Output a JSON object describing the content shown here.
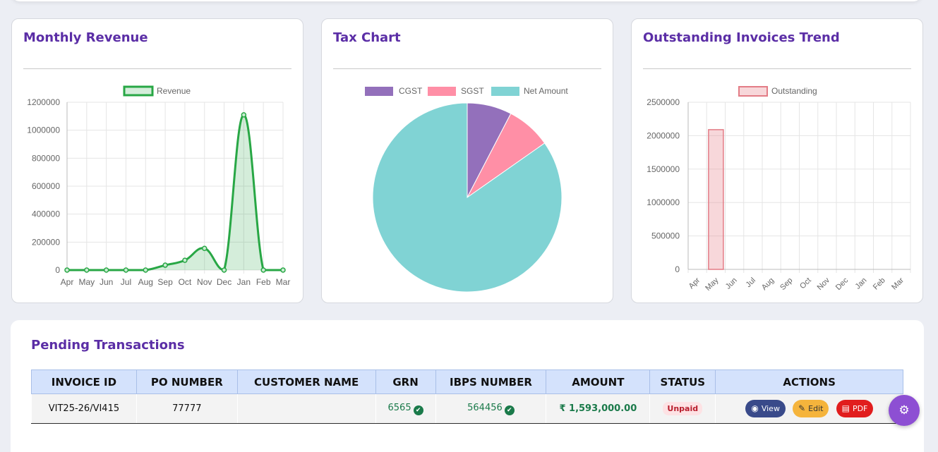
{
  "revenue_card": {
    "title": "Monthly Revenue"
  },
  "tax_card": {
    "title": "Tax Chart"
  },
  "outstanding_card": {
    "title": "Outstanding Invoices Trend"
  },
  "colors": {
    "accent": "#5b2ea6",
    "revenue": "#28a745",
    "cgst": "#9370bb",
    "sgst": "#ff8fa6",
    "net": "#80d3d4",
    "outstanding": "#e37c86",
    "fab": "#8d4fd3"
  },
  "chart_data": [
    {
      "type": "area",
      "title": "Monthly Revenue",
      "categories": [
        "Apr",
        "May",
        "Jun",
        "Jul",
        "Aug",
        "Sep",
        "Oct",
        "Nov",
        "Dec",
        "Jan",
        "Feb",
        "Mar"
      ],
      "series": [
        {
          "name": "Revenue",
          "values": [
            0,
            0,
            0,
            0,
            0,
            35000,
            70000,
            155000,
            0,
            1110000,
            0,
            0
          ]
        }
      ],
      "ylim": [
        0,
        1200000
      ],
      "yticks": [
        0,
        200000,
        400000,
        600000,
        800000,
        1000000,
        1200000
      ],
      "grid": true,
      "legend": "top-center"
    },
    {
      "type": "pie",
      "title": "Tax Chart",
      "categories": [
        "CGST",
        "SGST",
        "Net Amount"
      ],
      "values": [
        121500,
        121500,
        1350000
      ],
      "legend": "top-center"
    },
    {
      "type": "bar",
      "title": "Outstanding Invoices Trend",
      "categories": [
        "Apr",
        "May",
        "Jun",
        "Jul",
        "Aug",
        "Sep",
        "Oct",
        "Nov",
        "Dec",
        "Jan",
        "Feb",
        "Mar"
      ],
      "series": [
        {
          "name": "Outstanding",
          "values": [
            0,
            2090000,
            0,
            0,
            0,
            0,
            0,
            0,
            0,
            0,
            0,
            0
          ]
        }
      ],
      "ylim": [
        0,
        2500000
      ],
      "yticks": [
        0,
        500000,
        1000000,
        1500000,
        2000000,
        2500000
      ],
      "grid": true,
      "legend": "top-center"
    }
  ],
  "transactions": {
    "title": "Pending Transactions",
    "columns": [
      "INVOICE ID",
      "PO NUMBER",
      "CUSTOMER NAME",
      "GRN",
      "IBPS NUMBER",
      "AMOUNT",
      "STATUS",
      "ACTIONS"
    ],
    "row": {
      "invoice_id": "VIT25-26/VI415",
      "po_number": "77777",
      "customer_name": "",
      "grn": "6565",
      "ibps": "564456",
      "amount": "₹ 1,593,000.00",
      "status": "Unpaid",
      "view_label": "View",
      "edit_label": "Edit",
      "pdf_label": "PDF"
    }
  },
  "fab": {
    "icon": "gear-icon"
  }
}
